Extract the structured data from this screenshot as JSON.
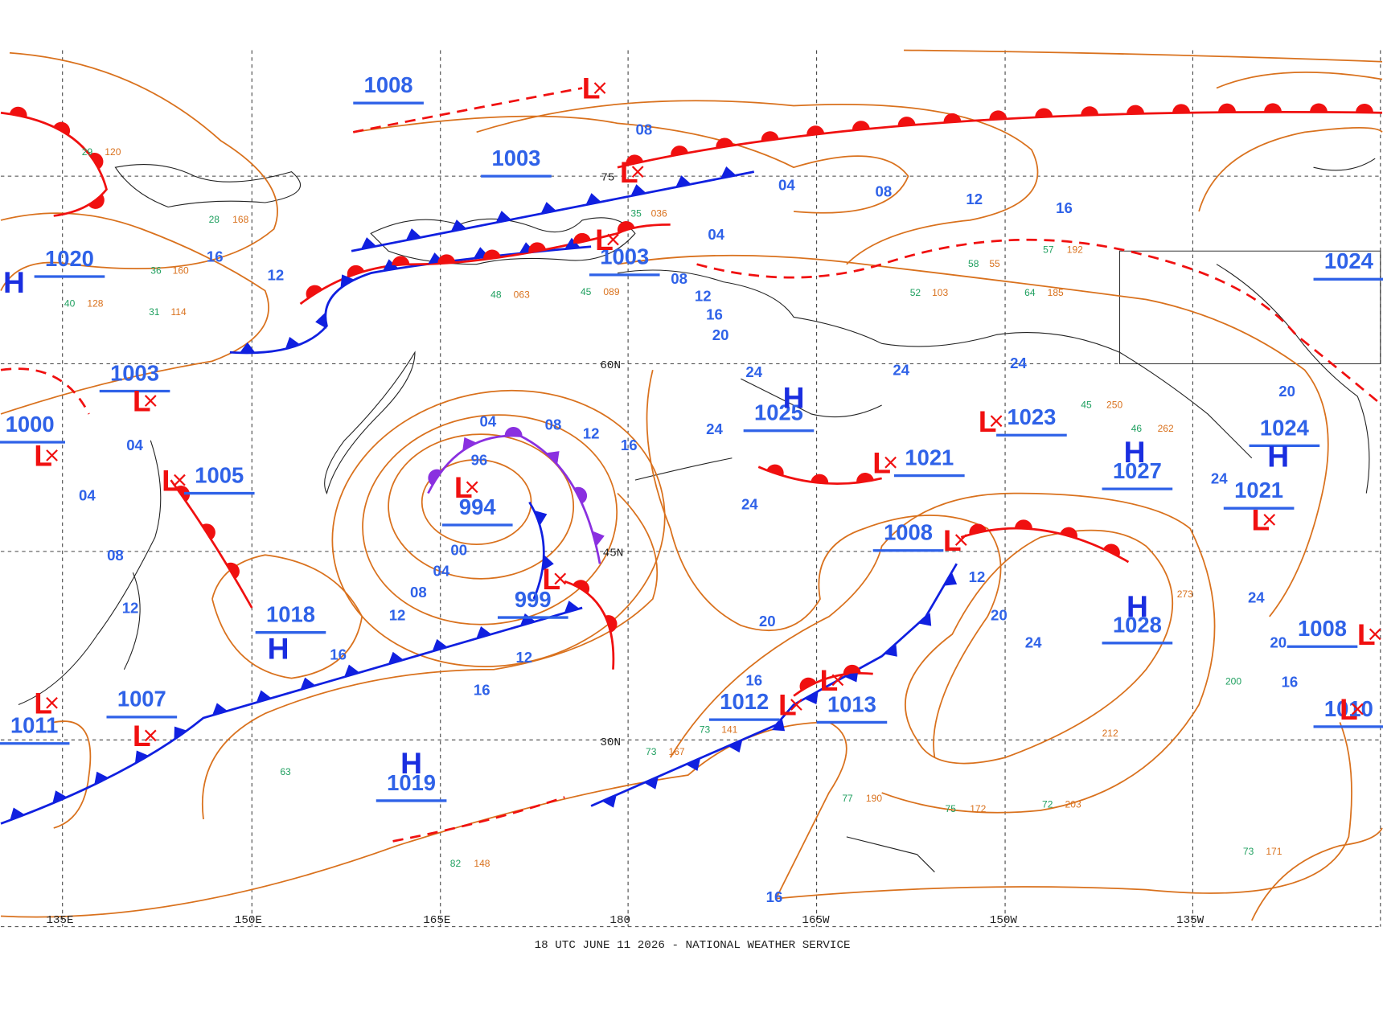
{
  "map": {
    "pressure_labels": [
      "1008",
      "1003",
      "1020",
      "1003",
      "1003",
      "1000",
      "1005",
      "994",
      "999",
      "1018",
      "1007",
      "1011",
      "1019",
      "1025",
      "1023",
      "1021",
      "1027",
      "1024",
      "1024",
      "1021",
      "1008",
      "1028",
      "1012",
      "1013",
      "1008",
      "1010"
    ],
    "symbols": [
      "L",
      "L",
      "L",
      "L",
      "L",
      "L",
      "L",
      "L",
      "L",
      "L",
      "L",
      "L",
      "L",
      "L",
      "L",
      "L",
      "L",
      "L",
      "H",
      "H",
      "H",
      "H",
      "H",
      "H",
      "H"
    ],
    "isobar_labels": [
      "08",
      "04",
      "08",
      "12",
      "16",
      "04",
      "08",
      "12",
      "16",
      "20",
      "24",
      "24",
      "24",
      "20",
      "16",
      "12",
      "04",
      "08",
      "12",
      "16",
      "96",
      "04",
      "04",
      "08",
      "12",
      "00",
      "04",
      "08",
      "12",
      "16",
      "12",
      "16",
      "24",
      "24",
      "20",
      "16",
      "12",
      "20",
      "24",
      "24",
      "24",
      "20",
      "16",
      "16"
    ],
    "station_plots": [
      "29",
      "120",
      "28",
      "168",
      "36",
      "160",
      "40",
      "128",
      "31",
      "114",
      "48",
      "063",
      "45",
      "089",
      "35",
      "036",
      "58",
      "55",
      "52",
      "103",
      "57",
      "192",
      "64",
      "185",
      "45",
      "250",
      "46",
      "262",
      "73",
      "141",
      "73",
      "167",
      "77",
      "190",
      "75",
      "172",
      "72",
      "203",
      "73",
      "171",
      "82",
      "148",
      "63",
      "212",
      "200",
      "273"
    ],
    "latitude_labels": [
      "75",
      "60N",
      "45N",
      "30N"
    ],
    "longitude_labels": [
      "135E",
      "150E",
      "165E",
      "180",
      "165W",
      "150W",
      "135W"
    ],
    "caption": "18 UTC JUNE 11 2026 - NATIONAL WEATHER SERVICE"
  }
}
